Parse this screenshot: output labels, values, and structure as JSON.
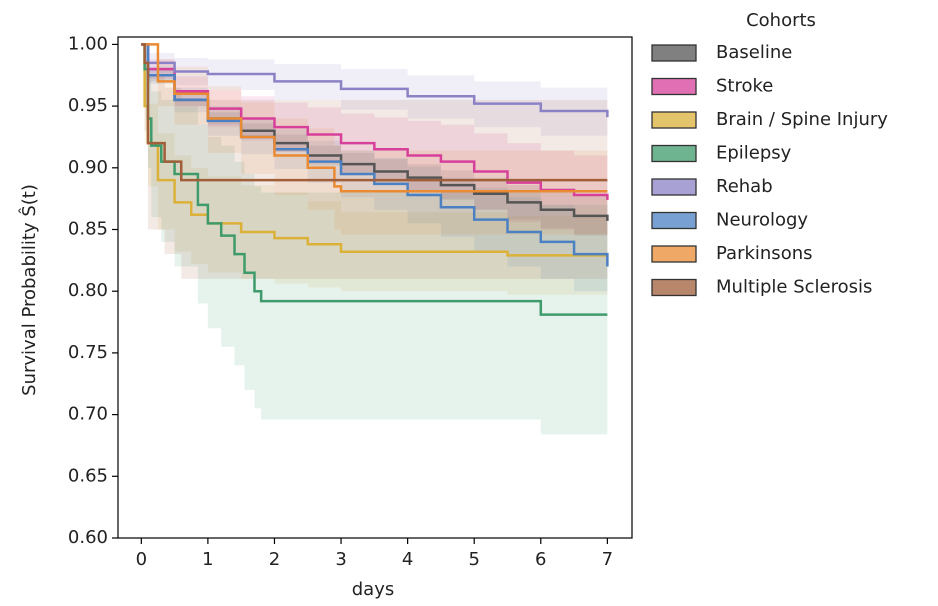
{
  "chart_data": {
    "type": "line",
    "drawstyle": "steps-post",
    "xlabel": "days",
    "ylabel": "Survival Probability Ŝ(t)",
    "legend_title": "Cohorts",
    "legend_loc": "outside right",
    "xlim": [
      -0.35,
      7.37
    ],
    "ylim": [
      0.6,
      1.006
    ],
    "xticks": [
      0,
      1,
      2,
      3,
      4,
      5,
      6,
      7
    ],
    "yticks": [
      {
        "value": 0.6,
        "label": "0.60"
      },
      {
        "value": 0.65,
        "label": "0.65"
      },
      {
        "value": 0.7,
        "label": "0.70"
      },
      {
        "value": 0.75,
        "label": "0.75"
      },
      {
        "value": 0.8,
        "label": "0.80"
      },
      {
        "value": 0.85,
        "label": "0.85"
      },
      {
        "value": 0.9,
        "label": "0.90"
      },
      {
        "value": 0.95,
        "label": "0.95"
      },
      {
        "value": 1.0,
        "label": "1.00"
      }
    ],
    "series": [
      {
        "name": "Baseline",
        "color": "#555555",
        "x": [
          0,
          0.1,
          0.5,
          1,
          1.5,
          2,
          2.5,
          3,
          3.5,
          4,
          4.5,
          5,
          5.5,
          6,
          6.5,
          7
        ],
        "values": [
          1.0,
          0.975,
          0.955,
          0.94,
          0.93,
          0.92,
          0.91,
          0.903,
          0.897,
          0.892,
          0.886,
          0.879,
          0.872,
          0.866,
          0.861,
          0.857
        ],
        "lower": [
          1.0,
          0.97,
          0.95,
          0.935,
          0.924,
          0.913,
          0.902,
          0.894,
          0.887,
          0.881,
          0.874,
          0.866,
          0.858,
          0.851,
          0.845,
          0.84
        ],
        "upper": [
          1.0,
          0.98,
          0.96,
          0.945,
          0.936,
          0.927,
          0.918,
          0.912,
          0.907,
          0.903,
          0.898,
          0.892,
          0.886,
          0.881,
          0.877,
          0.874
        ]
      },
      {
        "name": "Stroke",
        "color": "#d6409a",
        "x": [
          0,
          0.1,
          0.5,
          1,
          1.5,
          2,
          2.5,
          3,
          3.5,
          4,
          4.5,
          5,
          5.5,
          6,
          6.5,
          7
        ],
        "values": [
          1.0,
          0.98,
          0.962,
          0.948,
          0.94,
          0.933,
          0.927,
          0.92,
          0.915,
          0.91,
          0.905,
          0.897,
          0.888,
          0.882,
          0.878,
          0.874
        ],
        "lower": [
          1.0,
          0.972,
          0.95,
          0.933,
          0.922,
          0.913,
          0.905,
          0.896,
          0.889,
          0.882,
          0.875,
          0.866,
          0.856,
          0.85,
          0.846,
          0.842
        ],
        "upper": [
          1.0,
          0.988,
          0.974,
          0.963,
          0.958,
          0.953,
          0.949,
          0.944,
          0.941,
          0.938,
          0.935,
          0.928,
          0.92,
          0.914,
          0.91,
          0.906
        ]
      },
      {
        "name": "Brain / Spine Injury",
        "color": "#dcb13a",
        "x": [
          0,
          0.05,
          0.1,
          0.25,
          0.5,
          0.75,
          1,
          1.5,
          2,
          2.5,
          3,
          4,
          5,
          5.5,
          7
        ],
        "values": [
          1.0,
          0.95,
          0.92,
          0.89,
          0.872,
          0.862,
          0.855,
          0.848,
          0.843,
          0.838,
          0.832,
          0.832,
          0.832,
          0.829,
          0.829
        ],
        "lower": [
          1.0,
          0.92,
          0.885,
          0.85,
          0.832,
          0.822,
          0.815,
          0.81,
          0.806,
          0.803,
          0.8,
          0.8,
          0.8,
          0.797,
          0.797
        ],
        "upper": [
          1.0,
          0.975,
          0.952,
          0.928,
          0.91,
          0.9,
          0.893,
          0.886,
          0.88,
          0.873,
          0.864,
          0.864,
          0.864,
          0.861,
          0.861
        ]
      },
      {
        "name": "Epilepsy",
        "color": "#3f9b6b",
        "x": [
          0,
          0.05,
          0.1,
          0.15,
          0.3,
          0.5,
          0.85,
          1.0,
          1.2,
          1.4,
          1.55,
          1.7,
          1.8,
          6.0,
          7
        ],
        "values": [
          1.0,
          0.98,
          0.94,
          0.918,
          0.905,
          0.895,
          0.87,
          0.855,
          0.845,
          0.83,
          0.815,
          0.8,
          0.792,
          0.781,
          0.781
        ],
        "lower": [
          1.0,
          0.95,
          0.9,
          0.86,
          0.84,
          0.82,
          0.79,
          0.77,
          0.755,
          0.74,
          0.72,
          0.705,
          0.696,
          0.684,
          0.684
        ],
        "upper": [
          1.0,
          0.995,
          0.975,
          0.962,
          0.955,
          0.95,
          0.935,
          0.925,
          0.918,
          0.905,
          0.895,
          0.885,
          0.88,
          0.87,
          0.87
        ]
      },
      {
        "name": "Rehab",
        "color": "#8b82c6",
        "x": [
          0,
          0.1,
          0.5,
          1,
          2,
          3,
          4,
          5,
          6,
          7
        ],
        "values": [
          1.0,
          0.985,
          0.978,
          0.976,
          0.97,
          0.964,
          0.958,
          0.952,
          0.946,
          0.941
        ],
        "lower": [
          1.0,
          0.977,
          0.967,
          0.963,
          0.955,
          0.947,
          0.94,
          0.933,
          0.926,
          0.92
        ],
        "upper": [
          1.0,
          0.993,
          0.989,
          0.988,
          0.984,
          0.98,
          0.975,
          0.97,
          0.965,
          0.961
        ]
      },
      {
        "name": "Neurology",
        "color": "#4b80c3",
        "x": [
          0,
          0.1,
          0.5,
          1,
          1.5,
          2,
          2.5,
          3,
          3.5,
          4,
          4.5,
          5,
          5.5,
          6,
          6.5,
          7
        ],
        "values": [
          1.0,
          0.975,
          0.955,
          0.938,
          0.925,
          0.915,
          0.905,
          0.895,
          0.887,
          0.878,
          0.868,
          0.858,
          0.848,
          0.84,
          0.83,
          0.82
        ],
        "lower": [
          1.0,
          0.968,
          0.945,
          0.926,
          0.911,
          0.899,
          0.888,
          0.876,
          0.866,
          0.855,
          0.844,
          0.832,
          0.82,
          0.81,
          0.8,
          0.789
        ],
        "upper": [
          1.0,
          0.982,
          0.965,
          0.95,
          0.939,
          0.931,
          0.922,
          0.914,
          0.908,
          0.901,
          0.892,
          0.884,
          0.876,
          0.87,
          0.86,
          0.851
        ]
      },
      {
        "name": "Parkinsons",
        "color": "#ea8b33",
        "x": [
          0,
          0.25,
          0.5,
          1,
          1.5,
          2,
          2.5,
          2.9,
          3,
          7
        ],
        "values": [
          1.0,
          0.97,
          0.96,
          0.94,
          0.925,
          0.91,
          0.9,
          0.885,
          0.881,
          0.881
        ],
        "lower": [
          1.0,
          0.95,
          0.935,
          0.912,
          0.895,
          0.878,
          0.866,
          0.85,
          0.846,
          0.846
        ],
        "upper": [
          1.0,
          0.988,
          0.982,
          0.966,
          0.953,
          0.94,
          0.932,
          0.918,
          0.914,
          0.914
        ]
      },
      {
        "name": "Multiple Sclerosis",
        "color": "#a05f3a",
        "x": [
          0,
          0.05,
          0.1,
          0.35,
          0.6,
          7
        ],
        "values": [
          1.0,
          0.985,
          0.92,
          0.905,
          0.89,
          0.89
        ],
        "lower": [
          1.0,
          0.93,
          0.85,
          0.83,
          0.81,
          0.81
        ],
        "upper": [
          1.0,
          0.998,
          0.975,
          0.965,
          0.955,
          0.955
        ]
      }
    ]
  }
}
